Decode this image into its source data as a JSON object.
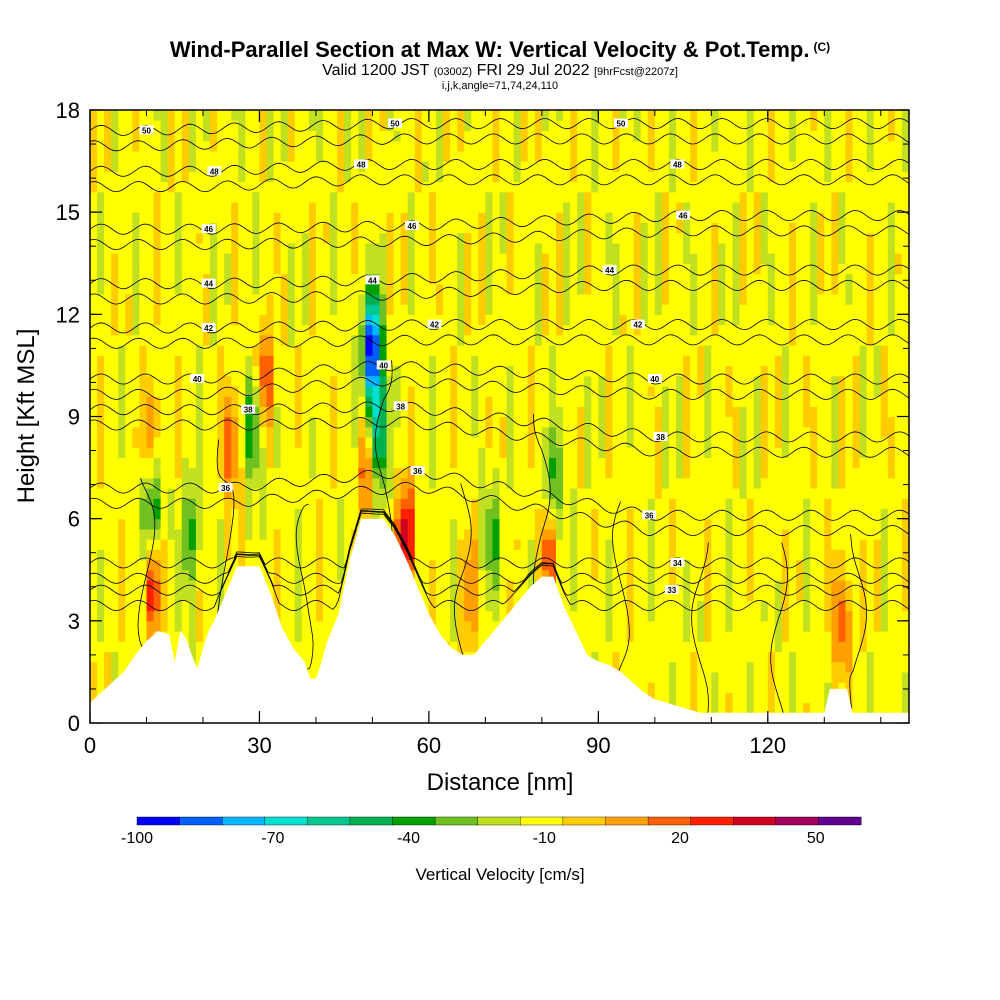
{
  "title": {
    "main": "Wind-Parallel Section at Max W: Vertical Velocity & Pot.Temp.",
    "copyright": "(C)",
    "valid_prefix": "Valid 1200 JST",
    "valid_utc": "(0300Z)",
    "valid_date": "FRI 29 Jul 2022",
    "forecast": "[9hrFcst@2207z]",
    "params": "i,j,k,angle=71,74,24,110"
  },
  "chart_data": {
    "type": "heatmap",
    "xlabel": "Distance [nm]",
    "ylabel": "Height [Kft MSL]",
    "xlim": [
      0,
      145
    ],
    "ylim": [
      0,
      18
    ],
    "x_ticks": [
      0,
      30,
      60,
      90,
      120
    ],
    "y_ticks": [
      0,
      3,
      6,
      9,
      12,
      15,
      18
    ],
    "x_minor_step": 10,
    "y_minor_step": 1,
    "terrain": {
      "x": [
        0,
        2,
        4,
        6,
        8,
        10,
        12,
        14,
        15,
        16,
        17,
        18,
        19,
        20,
        21,
        22,
        24,
        26,
        28,
        30,
        32,
        34,
        36,
        38,
        39,
        40,
        41,
        42,
        44,
        46,
        48,
        50,
        52,
        54,
        56,
        58,
        60,
        62,
        64,
        66,
        68,
        70,
        72,
        74,
        76,
        78,
        80,
        82,
        84,
        86,
        88,
        90,
        92,
        94,
        96,
        98,
        100,
        102,
        104,
        106,
        108,
        110,
        112,
        114,
        116,
        118,
        120,
        122,
        124,
        126,
        128,
        130,
        131,
        134,
        135,
        138,
        140,
        142,
        145
      ],
      "height_kft": [
        0.6,
        0.9,
        1.2,
        1.5,
        2.0,
        2.4,
        2.7,
        2.6,
        1.8,
        2.7,
        2.5,
        2.0,
        1.6,
        2.2,
        2.7,
        3.0,
        3.8,
        4.6,
        4.6,
        4.6,
        3.8,
        2.8,
        2.2,
        1.8,
        1.3,
        1.3,
        1.8,
        2.4,
        3.2,
        4.8,
        6.0,
        6.0,
        6.0,
        5.5,
        4.8,
        4.0,
        3.2,
        2.6,
        2.2,
        2.0,
        2.0,
        2.4,
        2.8,
        3.2,
        3.6,
        4.0,
        4.3,
        4.3,
        3.4,
        2.7,
        2.0,
        1.8,
        1.7,
        1.5,
        1.2,
        0.9,
        0.7,
        0.6,
        0.5,
        0.4,
        0.3,
        0.3,
        0.3,
        0.3,
        0.3,
        0.3,
        0.3,
        0.3,
        0.3,
        0.3,
        0.3,
        0.3,
        1.0,
        1.0,
        0.3,
        0.3,
        0.3,
        0.3,
        0.3
      ]
    },
    "vertical_velocity_cm_s": {
      "background": -5,
      "features": [
        {
          "x": 50,
          "z": 11.0,
          "w": -95
        },
        {
          "x": 51,
          "z": 8.5,
          "w": -60
        },
        {
          "x": 29,
          "z": 8.8,
          "w": -45
        },
        {
          "x": 11,
          "z": 6.2,
          "w": -40
        },
        {
          "x": 18,
          "z": 5.5,
          "w": -30
        },
        {
          "x": 82,
          "z": 7.0,
          "w": -30
        },
        {
          "x": 71,
          "z": 5.5,
          "w": -25
        },
        {
          "x": 31,
          "z": 10.0,
          "w": 40
        },
        {
          "x": 25,
          "z": 8.2,
          "w": 35
        },
        {
          "x": 11,
          "z": 4.0,
          "w": 40
        },
        {
          "x": 56,
          "z": 5.5,
          "w": 55
        },
        {
          "x": 49,
          "z": 7.5,
          "w": 35
        },
        {
          "x": 81,
          "z": 5.0,
          "w": 35
        },
        {
          "x": 11,
          "z": 8.5,
          "w": 25
        },
        {
          "x": 133,
          "z": 3.0,
          "w": 35
        },
        {
          "x": 67,
          "z": 3.8,
          "w": 25
        }
      ]
    },
    "potential_temperature_labels": [
      {
        "value": "50",
        "x": 10,
        "z": 17.4
      },
      {
        "value": "50",
        "x": 54,
        "z": 17.6
      },
      {
        "value": "50",
        "x": 94,
        "z": 17.6
      },
      {
        "value": "48",
        "x": 22,
        "z": 16.2
      },
      {
        "value": "48",
        "x": 48,
        "z": 16.4
      },
      {
        "value": "48",
        "x": 104,
        "z": 16.4
      },
      {
        "value": "46",
        "x": 21,
        "z": 14.5
      },
      {
        "value": "46",
        "x": 57,
        "z": 14.6
      },
      {
        "value": "46",
        "x": 105,
        "z": 14.9
      },
      {
        "value": "44",
        "x": 21,
        "z": 12.9
      },
      {
        "value": "44",
        "x": 50,
        "z": 13.0
      },
      {
        "value": "44",
        "x": 92,
        "z": 13.3
      },
      {
        "value": "42",
        "x": 21,
        "z": 11.6
      },
      {
        "value": "42",
        "x": 61,
        "z": 11.7
      },
      {
        "value": "42",
        "x": 97,
        "z": 11.7
      },
      {
        "value": "40",
        "x": 19,
        "z": 10.1
      },
      {
        "value": "40",
        "x": 52,
        "z": 10.5
      },
      {
        "value": "40",
        "x": 100,
        "z": 10.1
      },
      {
        "value": "38",
        "x": 28,
        "z": 9.2
      },
      {
        "value": "38",
        "x": 55,
        "z": 9.3
      },
      {
        "value": "38",
        "x": 101,
        "z": 8.4
      },
      {
        "value": "36",
        "x": 24,
        "z": 6.9
      },
      {
        "value": "36",
        "x": 58,
        "z": 7.4
      },
      {
        "value": "36",
        "x": 99,
        "z": 6.1
      },
      {
        "value": "34",
        "x": 104,
        "z": 4.7
      },
      {
        "value": "33",
        "x": 103,
        "z": 3.9
      }
    ],
    "colorbar": {
      "title": "Vertical Velocity [cm/s]",
      "boundaries": [
        -100,
        -90,
        -80,
        -70,
        -60,
        -50,
        -40,
        -30,
        -20,
        -10,
        0,
        10,
        20,
        30,
        40,
        50,
        60
      ],
      "colors": [
        "#0000ff",
        "#0060ff",
        "#00b8ff",
        "#00e0d0",
        "#00c890",
        "#00b050",
        "#00a000",
        "#70c020",
        "#c0e020",
        "#ffff00",
        "#ffcc00",
        "#ffa000",
        "#ff6000",
        "#ff2000",
        "#d00020",
        "#a00060",
        "#600090"
      ],
      "labels": [
        "-100",
        "-70",
        "-40",
        "-10",
        "20",
        "50"
      ],
      "label_values": [
        -100,
        -70,
        -40,
        -10,
        20,
        50
      ]
    }
  }
}
